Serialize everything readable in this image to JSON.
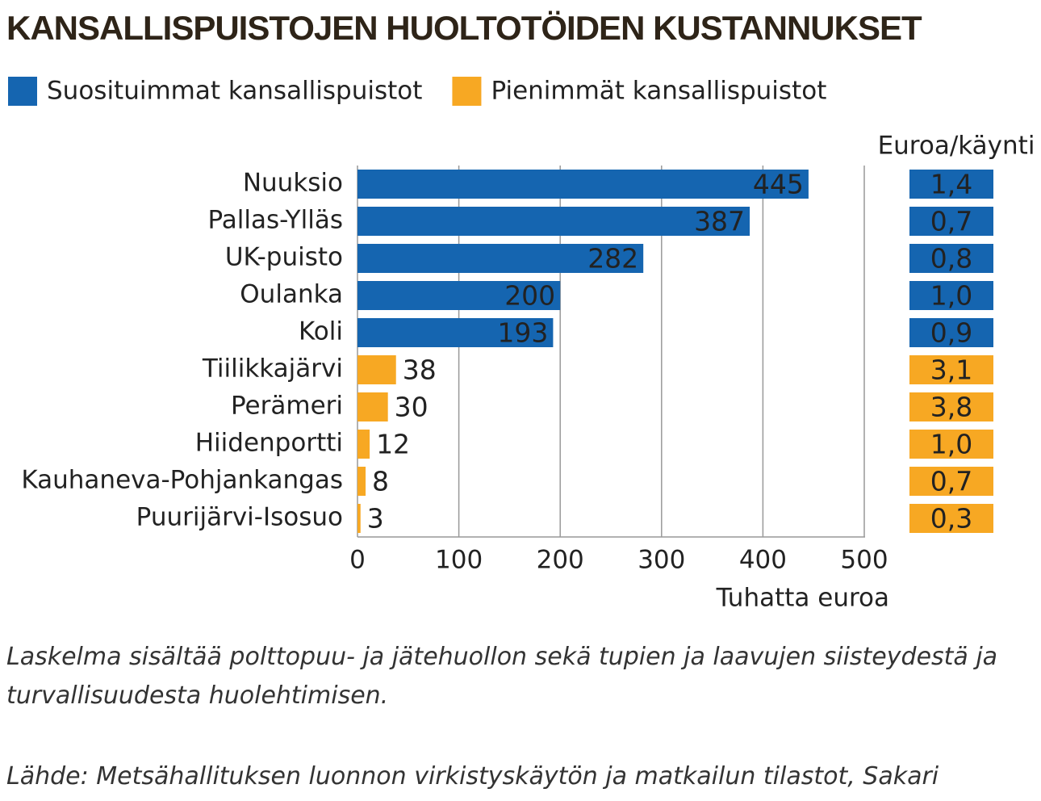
{
  "chart_data": {
    "type": "bar",
    "orientation": "horizontal",
    "title": "KANSALLISPUISTOJEN HUOLTOTÖIDEN KUSTANNUKSET",
    "categories": [
      "Nuuksio",
      "Pallas-Ylläs",
      "UK-puisto",
      "Oulanka",
      "Koli",
      "Tiilikkajärvi",
      "Perämeri",
      "Hiidenportti",
      "Kauhaneva-Pohjankangas",
      "Puurijärvi-Isosuo"
    ],
    "series": [
      {
        "name": "Suosituimmat kansallispuistot",
        "color": "#1565b0",
        "values": [
          445,
          387,
          282,
          200,
          193,
          null,
          null,
          null,
          null,
          null
        ]
      },
      {
        "name": "Pienimmät kansallispuistot",
        "color": "#f7a823",
        "values": [
          null,
          null,
          null,
          null,
          null,
          38,
          30,
          12,
          8,
          3
        ]
      }
    ],
    "xlim": [
      0,
      500
    ],
    "xticks": [
      0,
      100,
      200,
      300,
      400,
      500
    ],
    "xlabel": "Tuhatta euroa",
    "grid": true,
    "per_visit": {
      "title": "Euroa/käynti",
      "values": [
        1.4,
        0.7,
        0.8,
        1.0,
        0.9,
        3.1,
        3.8,
        1.0,
        0.7,
        0.3
      ],
      "value_labels": [
        "1,4",
        "0,7",
        "0,8",
        "1,0",
        "0,9",
        "3,1",
        "3,8",
        "1,0",
        "0,7",
        "0,3"
      ]
    },
    "note": "Laskelma sisältää polttopuu- ja jätehuollon sekä tupien ja laavujen siisteydestä ja turvallisuudesta huolehtimisen.",
    "source": "Lähde: Metsähallituksen luonnon virkistyskäytön ja matkailun tilastot, Sakari Kokkonen"
  }
}
